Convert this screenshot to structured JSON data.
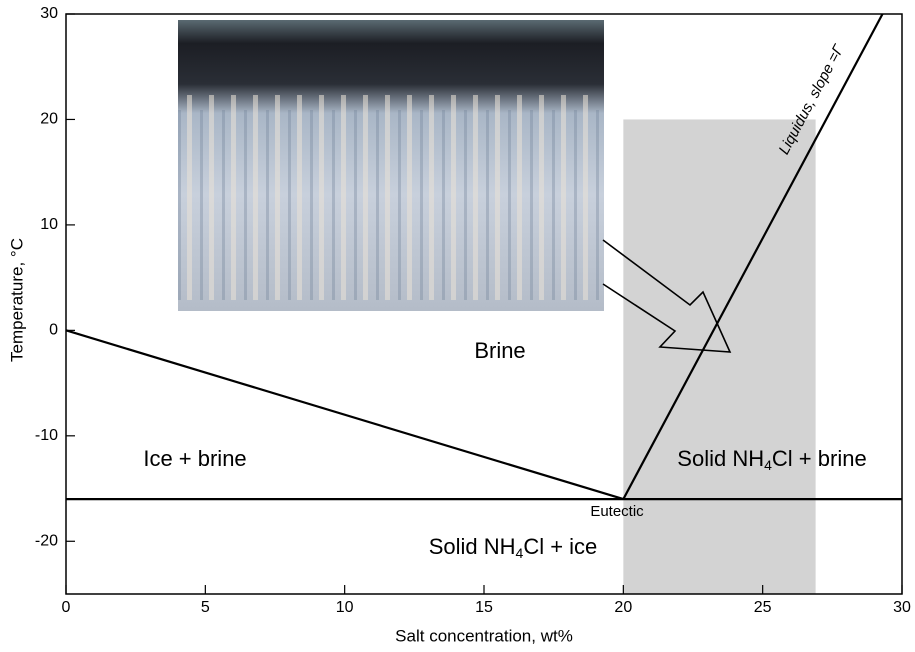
{
  "chart_data": {
    "type": "line",
    "xlabel": "Salt concentration, wt%",
    "ylabel": "Temperature, °C",
    "xlim": [
      0,
      30
    ],
    "ylim": [
      -25,
      30
    ],
    "xticks": [
      0,
      5,
      10,
      15,
      20,
      25,
      30
    ],
    "yticks": [
      -20,
      -10,
      0,
      10,
      20,
      30
    ],
    "color": "#000000",
    "series": [
      {
        "x": [
          0,
          20
        ],
        "values": [
          0,
          -16
        ]
      },
      {
        "x": [
          20,
          29.3
        ],
        "values": [
          -16,
          30
        ]
      },
      {
        "x": [
          0,
          30
        ],
        "values": [
          -16,
          -16
        ]
      }
    ],
    "shaded": {
      "xlim": [
        20,
        26.9
      ],
      "ylim": [
        -25,
        20
      ],
      "color": "#d3d3d3"
    },
    "annotations": [
      "Brine",
      "Ice + brine",
      "Eutectic",
      "Liquidus, slope =Γ",
      [
        "Solid  NH",
        "4",
        "Cl + brine"
      ],
      [
        "Solid NH",
        "4",
        "Cl + ice"
      ]
    ]
  }
}
